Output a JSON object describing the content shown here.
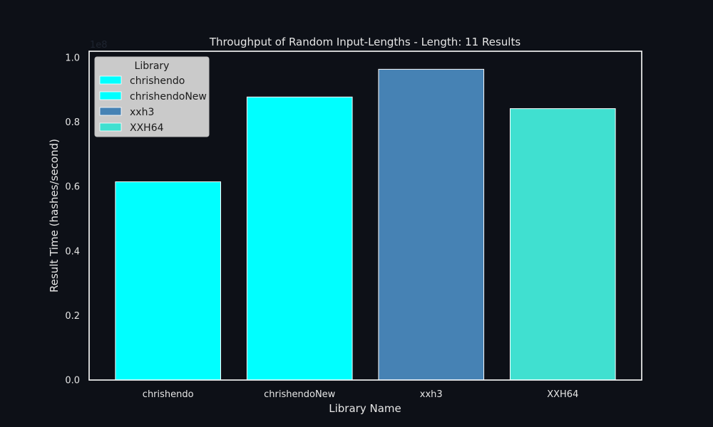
{
  "colors": {
    "background": "#0d1017",
    "text": "#e6e6e6",
    "axis": "#ffffff",
    "legend_bg": "#d2d2d2",
    "legend_text": "#1a1a1a"
  },
  "chart_data": {
    "type": "bar",
    "title": "Throughput of Random Input-Lengths - Length: 11 Results",
    "xlabel": "Library Name",
    "ylabel": "Result Time (hashes/second)",
    "y_scale_label": "1e8",
    "y_multiplier": 100000000,
    "ylim": [
      0,
      1.02
    ],
    "yticks": [
      0.0,
      0.2,
      0.4,
      0.6,
      0.8,
      1.0
    ],
    "ytick_labels": [
      "0.0",
      "0.2",
      "0.4",
      "0.6",
      "0.8",
      "1.0"
    ],
    "grid": false,
    "categories": [
      "chrishendo",
      "chrishendoNew",
      "xxh3",
      "XXH64"
    ],
    "values": [
      0.615,
      0.878,
      0.964,
      0.842
    ],
    "bar_colors": [
      "#00ffff",
      "#00ffff",
      "#4682b4",
      "#40e0d0"
    ],
    "legend": {
      "title": "Library",
      "placement": "top-left",
      "entries": [
        {
          "label": "chrishendo",
          "color": "#00ffff"
        },
        {
          "label": "chrishendoNew",
          "color": "#00ffff"
        },
        {
          "label": "xxh3",
          "color": "#4682b4"
        },
        {
          "label": "XXH64",
          "color": "#40e0d0"
        }
      ]
    }
  }
}
